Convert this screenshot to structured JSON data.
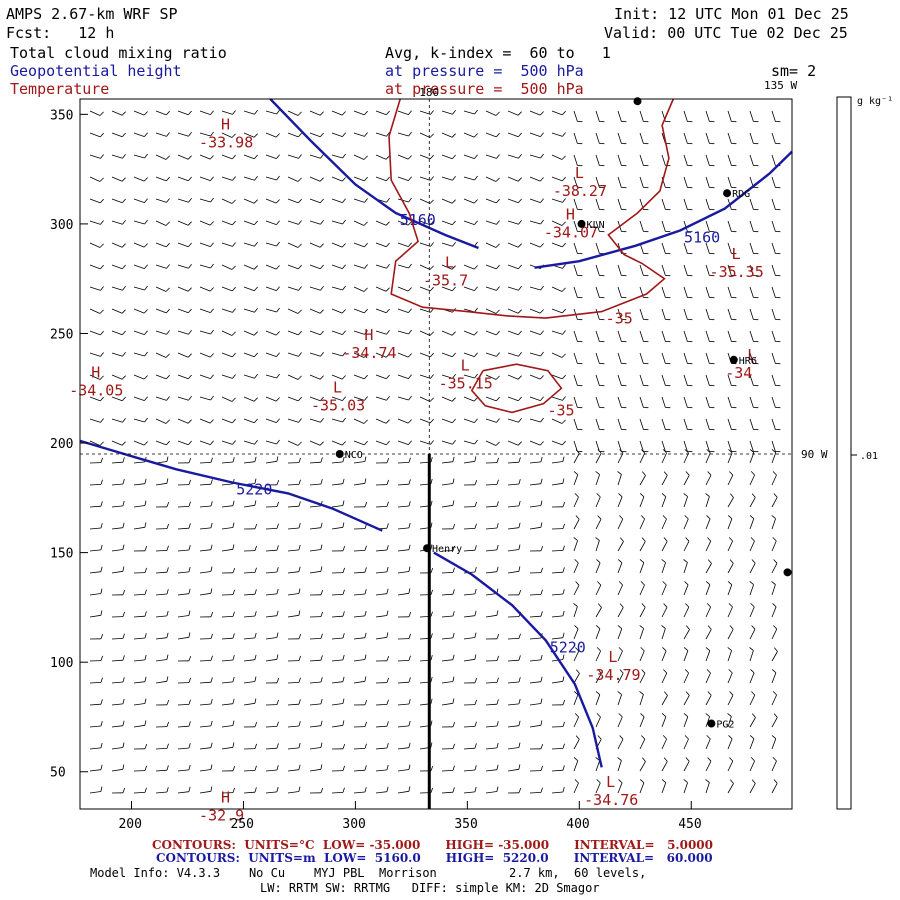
{
  "header": {
    "model_title": "AMPS 2.67-km WRF SP",
    "init": "Init: 12 UTC Mon 01 Dec 25",
    "fcst": "Fcst:   12 h",
    "valid": "Valid: 00 UTC Tue 02 Dec 25",
    "field_cloud": "Total cloud mixing ratio",
    "field_geo": "Geopotential height",
    "field_temp": "Temperature",
    "avg_line": "Avg, k-index =  60 to   1",
    "pressure_line_1": "at pressure =  500 hPa",
    "pressure_line_2": "at pressure =  500 hPa",
    "sm": "sm= 2"
  },
  "colors": {
    "geopotential": "#1a1aa0",
    "temperature": "#a01818",
    "axes": "#000000"
  },
  "chart_data": {
    "type": "contour",
    "xlim": [
      177,
      495
    ],
    "ylim": [
      33,
      357
    ],
    "x_ticks": [
      200,
      250,
      300,
      350,
      400,
      450
    ],
    "y_ticks": [
      50,
      100,
      150,
      200,
      250,
      300,
      350
    ],
    "overlays": {
      "wind_barbs": true,
      "cross_section_line": {
        "x": 333,
        "y_from": 33,
        "y_to": 195
      }
    },
    "reference_lines": [
      {
        "orient": "vertical",
        "x": 333,
        "label": "180"
      },
      {
        "orient": "horizontal",
        "y": 195,
        "label": "90 W"
      }
    ],
    "corner_label": "135 W",
    "colorbar": {
      "unit": "g kg⁻¹",
      "tick_label": ".01",
      "tick_value": 0.01
    },
    "geopotential_contours": [
      {
        "label": "5160",
        "points": [
          [
            262,
            357
          ],
          [
            280,
            338
          ],
          [
            300,
            318
          ],
          [
            318,
            305
          ],
          [
            340,
            295
          ],
          [
            355,
            289
          ]
        ]
      },
      {
        "label": "5160",
        "points": [
          [
            380,
            280
          ],
          [
            400,
            283
          ],
          [
            425,
            290
          ],
          [
            445,
            297
          ],
          [
            465,
            307
          ],
          [
            485,
            323
          ],
          [
            495,
            333
          ]
        ]
      },
      {
        "label": "5220",
        "points": [
          [
            177,
            201
          ],
          [
            200,
            194
          ],
          [
            220,
            188
          ],
          [
            245,
            182
          ],
          [
            270,
            177
          ],
          [
            290,
            170
          ],
          [
            312,
            160
          ]
        ]
      },
      {
        "label": "5220",
        "points": [
          [
            335,
            150
          ],
          [
            352,
            140
          ],
          [
            370,
            126
          ],
          [
            385,
            110
          ],
          [
            398,
            90
          ],
          [
            406,
            70
          ],
          [
            410,
            52
          ]
        ]
      }
    ],
    "temperature_contours": [
      {
        "label": "-35",
        "points": [
          [
            320,
            357
          ],
          [
            315,
            340
          ],
          [
            316,
            320
          ],
          [
            324,
            305
          ],
          [
            328,
            292
          ],
          [
            318,
            283
          ],
          [
            316,
            268
          ],
          [
            330,
            262
          ],
          [
            350,
            260
          ],
          [
            368,
            258
          ],
          [
            385,
            257
          ],
          [
            410,
            260
          ],
          [
            430,
            268
          ],
          [
            438,
            275
          ],
          [
            428,
            282
          ],
          [
            420,
            286
          ],
          [
            413,
            295
          ],
          [
            426,
            305
          ],
          [
            436,
            315
          ],
          [
            440,
            330
          ],
          [
            437,
            345
          ],
          [
            442,
            357
          ]
        ]
      },
      {
        "label": "-35",
        "points": [
          [
            357,
            233
          ],
          [
            372,
            236
          ],
          [
            386,
            233
          ],
          [
            392,
            225
          ],
          [
            384,
            218
          ],
          [
            370,
            214
          ],
          [
            358,
            217
          ],
          [
            352,
            224
          ],
          [
            357,
            233
          ]
        ]
      }
    ],
    "highs_lows": [
      {
        "type": "H",
        "value": "-33.98",
        "x": 240,
        "y": 343
      },
      {
        "type": "L",
        "value": "-38.27",
        "x": 398,
        "y": 321
      },
      {
        "type": "H",
        "value": "-34.07",
        "x": 394,
        "y": 302
      },
      {
        "type": "L",
        "value": "-35.35",
        "x": 468,
        "y": 284
      },
      {
        "type": "L",
        "value": "-35.7",
        "x": 340,
        "y": 280
      },
      {
        "type": "H",
        "value": "-34.74",
        "x": 304,
        "y": 247
      },
      {
        "type": "L",
        "value": "-35.15",
        "x": 347,
        "y": 233
      },
      {
        "type": "L",
        "value": "-34",
        "x": 475,
        "y": 238
      },
      {
        "type": "H",
        "value": "-34.05",
        "x": 182,
        "y": 230
      },
      {
        "type": "L",
        "value": "-35.03",
        "x": 290,
        "y": 223
      },
      {
        "type": "L",
        "value": "-34.79",
        "x": 413,
        "y": 100
      },
      {
        "type": "H",
        "value": "-32.9",
        "x": 240,
        "y": 36
      },
      {
        "type": "L",
        "value": "-34.76",
        "x": 412,
        "y": 43
      }
    ],
    "stations": [
      {
        "name": "KLN",
        "x": 401,
        "y": 300
      },
      {
        "name": "RDG",
        "x": 466,
        "y": 314
      },
      {
        "name": "HRG",
        "x": 469,
        "y": 238
      },
      {
        "name": "NCO",
        "x": 293,
        "y": 195
      },
      {
        "name": "Henry",
        "x": 332,
        "y": 152
      },
      {
        "name": "PG2",
        "x": 459,
        "y": 72
      },
      {
        "name": "",
        "x": 426,
        "y": 356
      },
      {
        "name": "",
        "x": 493,
        "y": 141
      }
    ]
  },
  "footer": {
    "contours_temp": "CONTOURS:  UNITS=°C  LOW= -35.000      HIGH= -35.000      INTERVAL=   5.0000",
    "contours_geo": "CONTOURS:  UNITS=m  LOW=  5160.0      HIGH=  5220.0      INTERVAL=   60.000",
    "model_info": "Model Info: V4.3.3    No Cu    MYJ PBL  Morrison          2.7 km,  60 levels,",
    "physics": "LW: RRTM SW: RRTMG   DIFF: simple KM: 2D Smagor"
  }
}
